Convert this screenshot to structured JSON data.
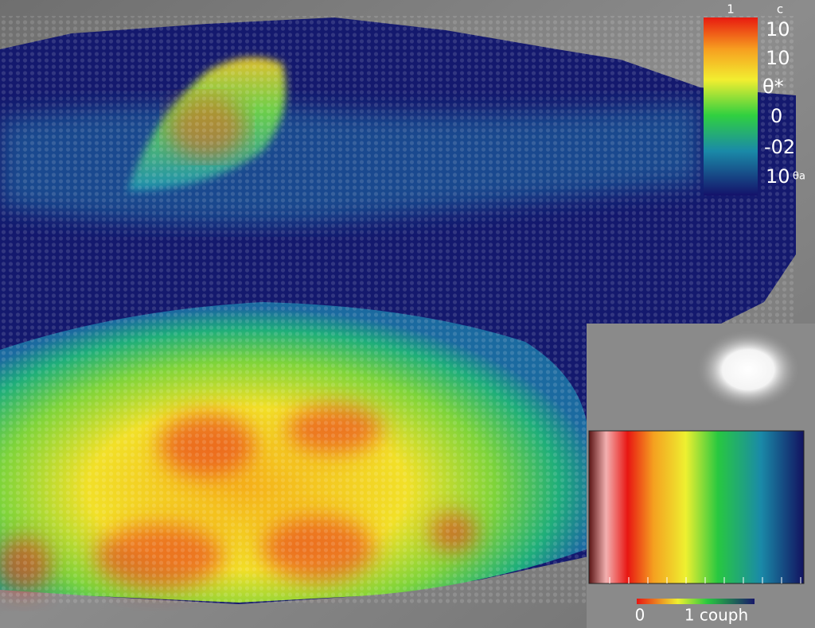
{
  "colorbar": {
    "header": [
      "1",
      "c"
    ],
    "labels": [
      "10",
      "10",
      "θ*",
      "0",
      "-02",
      "10"
    ],
    "unit": "θa"
  },
  "inset": {
    "labels": [
      "0",
      "1 couph"
    ]
  }
}
